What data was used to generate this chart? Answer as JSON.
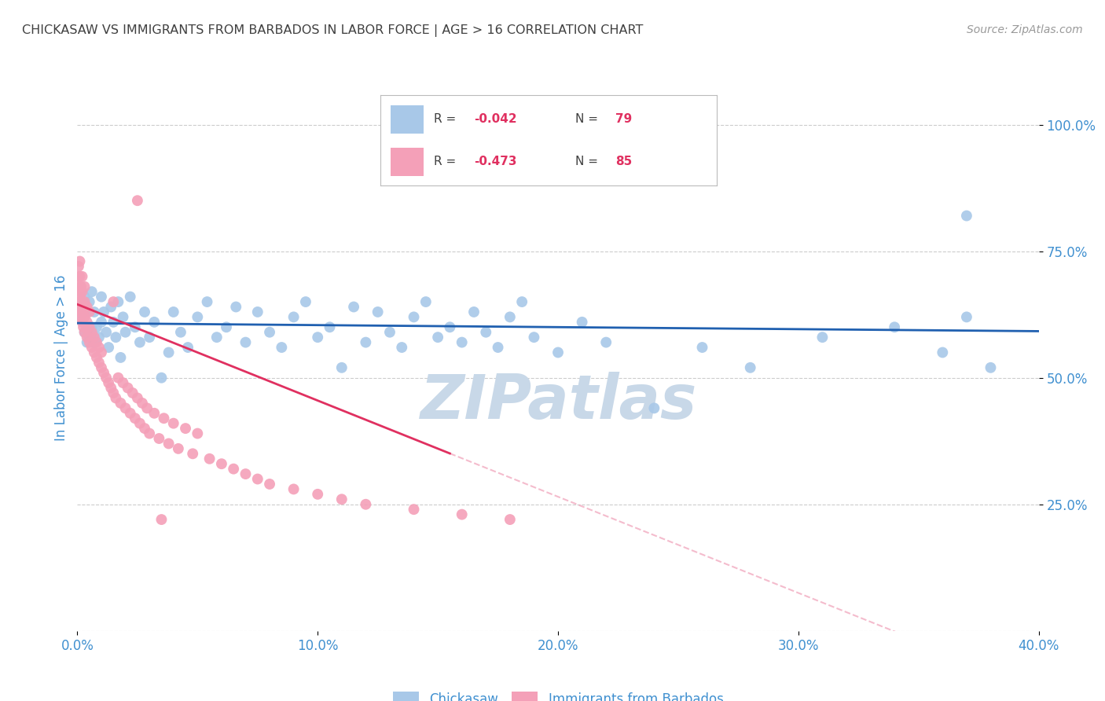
{
  "title": "CHICKASAW VS IMMIGRANTS FROM BARBADOS IN LABOR FORCE | AGE > 16 CORRELATION CHART",
  "source": "Source: ZipAtlas.com",
  "ylabel": "In Labor Force | Age > 16",
  "xlim": [
    0.0,
    0.4
  ],
  "ylim": [
    0.0,
    1.08
  ],
  "xtick_vals": [
    0.0,
    0.1,
    0.2,
    0.3,
    0.4
  ],
  "xtick_labels": [
    "0.0%",
    "10.0%",
    "20.0%",
    "30.0%",
    "40.0%"
  ],
  "ytick_vals": [
    0.25,
    0.5,
    0.75,
    1.0
  ],
  "ytick_labels": [
    "25.0%",
    "50.0%",
    "75.0%",
    "100.0%"
  ],
  "chickasaw_R": -0.042,
  "chickasaw_N": 79,
  "barbados_R": -0.473,
  "barbados_N": 85,
  "chickasaw_color": "#a8c8e8",
  "barbados_color": "#f4a0b8",
  "chickasaw_line_color": "#2060b0",
  "barbados_line_solid_color": "#e03060",
  "barbados_line_dash_color": "#f0a0b8",
  "background_color": "#ffffff",
  "grid_color": "#cccccc",
  "title_color": "#404040",
  "axis_label_color": "#4090d0",
  "tick_label_color": "#4090d0",
  "watermark_color": "#c8d8e8",
  "legend_text_color": "#404040",
  "legend_val_color": "#e03060",
  "source_color": "#999999",
  "bottom_legend_color": "#4090d0",
  "chickasaw_x": [
    0.001,
    0.002,
    0.003,
    0.003,
    0.004,
    0.004,
    0.005,
    0.005,
    0.006,
    0.006,
    0.007,
    0.007,
    0.008,
    0.009,
    0.01,
    0.01,
    0.011,
    0.012,
    0.013,
    0.014,
    0.015,
    0.016,
    0.017,
    0.018,
    0.019,
    0.02,
    0.022,
    0.024,
    0.026,
    0.028,
    0.03,
    0.032,
    0.035,
    0.038,
    0.04,
    0.043,
    0.046,
    0.05,
    0.054,
    0.058,
    0.062,
    0.066,
    0.07,
    0.075,
    0.08,
    0.085,
    0.09,
    0.095,
    0.1,
    0.105,
    0.11,
    0.115,
    0.12,
    0.125,
    0.13,
    0.135,
    0.14,
    0.145,
    0.15,
    0.155,
    0.16,
    0.165,
    0.17,
    0.175,
    0.18,
    0.185,
    0.19,
    0.2,
    0.21,
    0.22,
    0.24,
    0.26,
    0.28,
    0.31,
    0.34,
    0.36,
    0.37,
    0.38,
    0.37
  ],
  "chickasaw_y": [
    0.62,
    0.64,
    0.59,
    0.66,
    0.57,
    0.63,
    0.58,
    0.65,
    0.6,
    0.67,
    0.57,
    0.63,
    0.6,
    0.58,
    0.61,
    0.66,
    0.63,
    0.59,
    0.56,
    0.64,
    0.61,
    0.58,
    0.65,
    0.54,
    0.62,
    0.59,
    0.66,
    0.6,
    0.57,
    0.63,
    0.58,
    0.61,
    0.5,
    0.55,
    0.63,
    0.59,
    0.56,
    0.62,
    0.65,
    0.58,
    0.6,
    0.64,
    0.57,
    0.63,
    0.59,
    0.56,
    0.62,
    0.65,
    0.58,
    0.6,
    0.52,
    0.64,
    0.57,
    0.63,
    0.59,
    0.56,
    0.62,
    0.65,
    0.58,
    0.6,
    0.57,
    0.63,
    0.59,
    0.56,
    0.62,
    0.65,
    0.58,
    0.55,
    0.61,
    0.57,
    0.44,
    0.56,
    0.52,
    0.58,
    0.6,
    0.55,
    0.62,
    0.52,
    0.82
  ],
  "barbados_x": [
    0.0005,
    0.0005,
    0.0008,
    0.0008,
    0.001,
    0.001,
    0.001,
    0.001,
    0.0012,
    0.0012,
    0.0015,
    0.0015,
    0.0015,
    0.002,
    0.002,
    0.002,
    0.002,
    0.002,
    0.0025,
    0.0025,
    0.003,
    0.003,
    0.003,
    0.003,
    0.004,
    0.004,
    0.004,
    0.005,
    0.005,
    0.005,
    0.006,
    0.006,
    0.007,
    0.007,
    0.008,
    0.008,
    0.009,
    0.009,
    0.01,
    0.01,
    0.011,
    0.012,
    0.013,
    0.014,
    0.015,
    0.016,
    0.017,
    0.018,
    0.019,
    0.02,
    0.021,
    0.022,
    0.023,
    0.024,
    0.025,
    0.026,
    0.027,
    0.028,
    0.029,
    0.03,
    0.032,
    0.034,
    0.036,
    0.038,
    0.04,
    0.042,
    0.045,
    0.048,
    0.05,
    0.055,
    0.06,
    0.065,
    0.07,
    0.075,
    0.08,
    0.09,
    0.1,
    0.11,
    0.12,
    0.14,
    0.16,
    0.18,
    0.015,
    0.025,
    0.035
  ],
  "barbados_y": [
    0.68,
    0.72,
    0.65,
    0.7,
    0.64,
    0.67,
    0.7,
    0.73,
    0.63,
    0.66,
    0.62,
    0.65,
    0.68,
    0.61,
    0.64,
    0.67,
    0.7,
    0.63,
    0.6,
    0.63,
    0.59,
    0.62,
    0.65,
    0.68,
    0.58,
    0.61,
    0.64,
    0.57,
    0.6,
    0.63,
    0.56,
    0.59,
    0.55,
    0.58,
    0.54,
    0.57,
    0.53,
    0.56,
    0.52,
    0.55,
    0.51,
    0.5,
    0.49,
    0.48,
    0.47,
    0.46,
    0.5,
    0.45,
    0.49,
    0.44,
    0.48,
    0.43,
    0.47,
    0.42,
    0.46,
    0.41,
    0.45,
    0.4,
    0.44,
    0.39,
    0.43,
    0.38,
    0.42,
    0.37,
    0.41,
    0.36,
    0.4,
    0.35,
    0.39,
    0.34,
    0.33,
    0.32,
    0.31,
    0.3,
    0.29,
    0.28,
    0.27,
    0.26,
    0.25,
    0.24,
    0.23,
    0.22,
    0.65,
    0.85,
    0.22
  ]
}
